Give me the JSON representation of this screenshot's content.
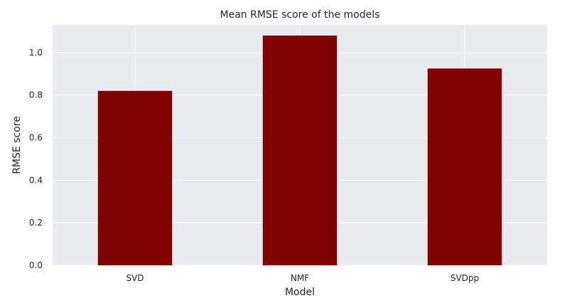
{
  "chart_data": {
    "type": "bar",
    "title": "Mean RMSE score of the models",
    "xlabel": "Model",
    "ylabel": "RMSE score",
    "categories": [
      "SVD",
      "NMF",
      "SVDpp"
    ],
    "values": [
      0.82,
      1.08,
      0.925
    ],
    "ylim": [
      0,
      1.13
    ],
    "yticks": [
      0.0,
      0.2,
      0.4,
      0.6,
      0.8,
      1.0
    ],
    "ytick_labels": [
      "0.0",
      "0.2",
      "0.4",
      "0.6",
      "0.8",
      "1.0"
    ],
    "grid": true,
    "bar_color": "#800000",
    "background_color": "#eaeaf2"
  }
}
